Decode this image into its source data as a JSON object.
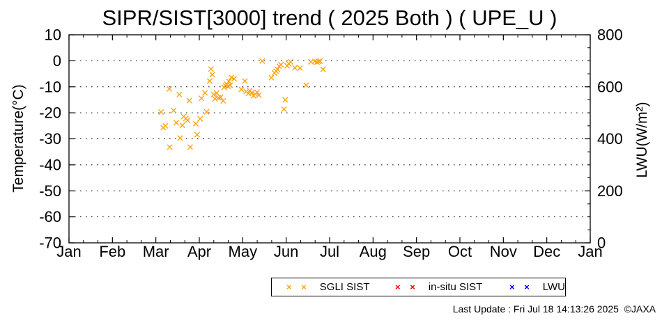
{
  "title": "SIPR/SIST[3000] trend ( 2025 Both ) ( UPE_U )",
  "footer": "Last Update : Fri Jul 18 14:13:26 2025  ©JAXA",
  "chart_data": {
    "type": "scatter",
    "title": "SIPR/SIST[3000] trend ( 2025 Both ) ( UPE_U )",
    "grid": "dotted horizontal lines at each 10°C",
    "legend_position": "below plot, centered-right, boxed",
    "x_axis": {
      "label": "",
      "tick_labels": [
        "Jan",
        "Feb",
        "Mar",
        "Apr",
        "May",
        "Jun",
        "Jul",
        "Aug",
        "Sep",
        "Oct",
        "Nov",
        "Dec",
        "Jan"
      ],
      "range_months": [
        0,
        12
      ],
      "minor_ticks_per_month": 2
    },
    "y_axis": {
      "label": "Temperature(°C)",
      "ticks": [
        10,
        0,
        -10,
        -20,
        -30,
        -40,
        -50,
        -60,
        -70
      ],
      "range": [
        -70,
        10
      ]
    },
    "y2_axis": {
      "label": "LWU(W/m²)",
      "ticks": [
        800,
        600,
        400,
        200,
        0
      ],
      "range": [
        0,
        800
      ],
      "minor_tick_step": 50,
      "major_tick_step": 200
    },
    "marker_glyph": "× ×",
    "series": [
      {
        "name": "SGLI SIST",
        "color": "#FFA411",
        "marker": "x",
        "points_unit": "[month_fraction_from_Jan1, temperature_C]",
        "points": [
          [
            2.12,
            -19.7
          ],
          [
            2.17,
            -25.7
          ],
          [
            2.22,
            -25.0
          ],
          [
            2.31,
            -10.8
          ],
          [
            2.32,
            -33.2
          ],
          [
            2.41,
            -19.1
          ],
          [
            2.47,
            -23.8
          ],
          [
            2.54,
            -13.0
          ],
          [
            2.56,
            -29.7
          ],
          [
            2.61,
            -24.8
          ],
          [
            2.64,
            -21.4
          ],
          [
            2.69,
            -22.2
          ],
          [
            2.73,
            -22.9
          ],
          [
            2.77,
            -15.3
          ],
          [
            2.79,
            -33.2
          ],
          [
            2.92,
            -24.2
          ],
          [
            2.95,
            -28.4
          ],
          [
            3.02,
            -22.3
          ],
          [
            3.05,
            -14.4
          ],
          [
            3.13,
            -12.3
          ],
          [
            3.17,
            -19.6
          ],
          [
            3.24,
            -7.8
          ],
          [
            3.27,
            -3.2
          ],
          [
            3.3,
            -5.3
          ],
          [
            3.33,
            -12.9
          ],
          [
            3.36,
            -14.6
          ],
          [
            3.4,
            -12.4
          ],
          [
            3.44,
            -14.2
          ],
          [
            3.49,
            -14.0
          ],
          [
            3.55,
            -15.4
          ],
          [
            3.57,
            -10.2
          ],
          [
            3.6,
            -9.6
          ],
          [
            3.63,
            -9.0
          ],
          [
            3.66,
            -9.8
          ],
          [
            3.68,
            -7.9
          ],
          [
            3.71,
            -9.4
          ],
          [
            3.74,
            -6.4
          ],
          [
            3.8,
            -6.9
          ],
          [
            3.97,
            -11.0
          ],
          [
            4.05,
            -7.8
          ],
          [
            4.08,
            -11.8
          ],
          [
            4.13,
            -12.6
          ],
          [
            4.16,
            -11.5
          ],
          [
            4.21,
            -12.3
          ],
          [
            4.25,
            -13.5
          ],
          [
            4.29,
            -12.8
          ],
          [
            4.33,
            -12.1
          ],
          [
            4.37,
            -13.2
          ],
          [
            4.45,
            -0.1
          ],
          [
            4.66,
            -6.5
          ],
          [
            4.73,
            -4.7
          ],
          [
            4.77,
            -4.0
          ],
          [
            4.8,
            -3.3
          ],
          [
            4.84,
            -2.1
          ],
          [
            4.88,
            -1.5
          ],
          [
            4.95,
            -18.6
          ],
          [
            4.98,
            -15.0
          ],
          [
            5.02,
            -1.9
          ],
          [
            5.06,
            -1.1
          ],
          [
            5.1,
            -0.4
          ],
          [
            5.2,
            -2.7
          ],
          [
            5.32,
            -2.8
          ],
          [
            5.46,
            -9.4
          ],
          [
            5.57,
            -0.4
          ],
          [
            5.66,
            -0.2
          ],
          [
            5.71,
            -0.5
          ],
          [
            5.75,
            -0.3
          ],
          [
            5.78,
            -0.1
          ],
          [
            5.85,
            -3.3
          ]
        ]
      },
      {
        "name": "in-situ SIST",
        "color": "#FF0000",
        "marker": "x",
        "points": []
      },
      {
        "name": "LWU",
        "color": "#0000FF",
        "marker": "x",
        "points": []
      }
    ]
  }
}
